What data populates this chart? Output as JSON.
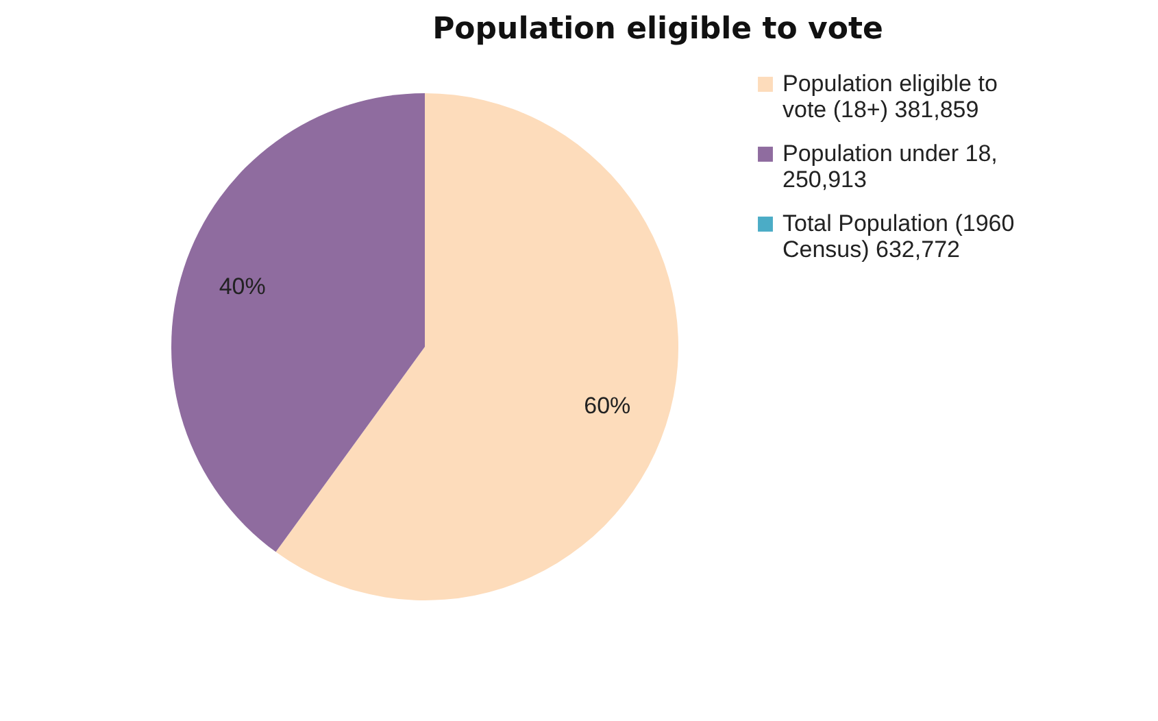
{
  "chart_data": {
    "type": "pie",
    "title": "Population eligible to vote",
    "categories": [
      "Population eligible to vote (18+) 381,859",
      "Population under 18, 250,913",
      "Total Population (1960 Census) 632,772"
    ],
    "values": [
      60,
      40,
      0
    ],
    "colors": [
      "#fddcbb",
      "#8f6c9f",
      "#4bacc6"
    ],
    "value_labels": [
      "60%",
      "40%",
      null
    ],
    "legend": "right"
  }
}
